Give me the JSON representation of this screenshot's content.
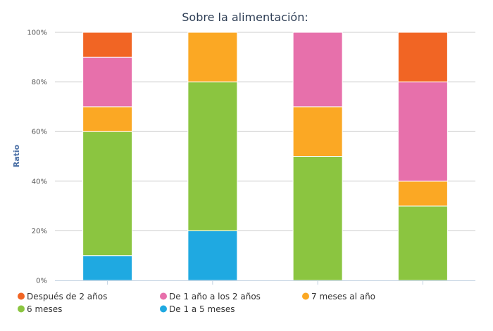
{
  "chart_data": {
    "type": "bar",
    "stacked": true,
    "title": "Sobre la alimentación:",
    "ylabel": "Ratio",
    "xlabel": "",
    "ylim": [
      0,
      100
    ],
    "yticks": [
      "0%",
      "20%",
      "40%",
      "60%",
      "80%",
      "100%"
    ],
    "categories": [
      "",
      "",
      "",
      ""
    ],
    "grid": true,
    "legend_position": "bottom",
    "series": [
      {
        "name": "De 1 a 5 meses",
        "color": "#1fa9e1",
        "values": [
          10,
          20,
          0,
          0
        ]
      },
      {
        "name": "6 meses",
        "color": "#8bc540",
        "values": [
          50,
          60,
          50,
          30
        ]
      },
      {
        "name": "7 meses al año",
        "color": "#fba824",
        "values": [
          10,
          20,
          20,
          10
        ]
      },
      {
        "name": "De 1 año a los 2 años",
        "color": "#e770ab",
        "values": [
          20,
          0,
          30,
          40
        ]
      },
      {
        "name": "Después de 2 años",
        "color": "#f16524",
        "values": [
          10,
          0,
          0,
          20
        ]
      }
    ],
    "legend_order": [
      "Después de 2 años",
      "De 1 año a los 2 años",
      "7 meses al año",
      "6 meses",
      "De 1 a 5 meses"
    ]
  }
}
